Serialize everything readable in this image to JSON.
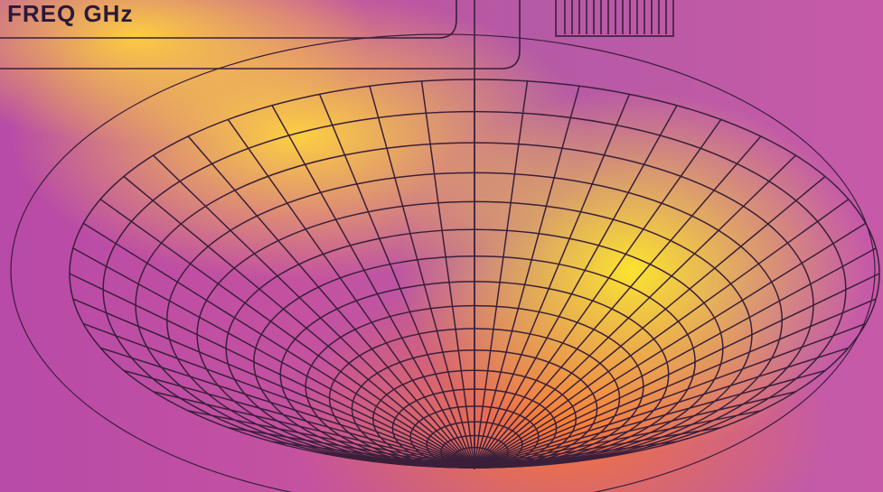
{
  "label": "FREQ GHz"
}
